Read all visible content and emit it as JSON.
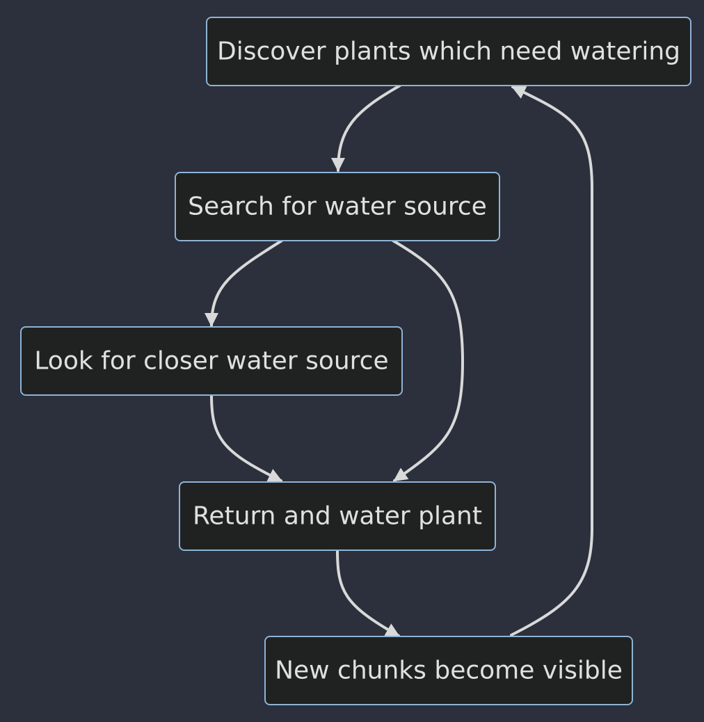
{
  "nodes": {
    "discover": "Discover plants which need watering",
    "search": "Search for water source",
    "look_closer": "Look for closer water source",
    "return_water": "Return and water plant",
    "new_chunks": "New chunks become visible"
  },
  "edges": [
    {
      "from": "discover",
      "to": "search"
    },
    {
      "from": "search",
      "to": "look_closer"
    },
    {
      "from": "search",
      "to": "return_water"
    },
    {
      "from": "look_closer",
      "to": "return_water"
    },
    {
      "from": "return_water",
      "to": "new_chunks"
    },
    {
      "from": "new_chunks",
      "to": "discover"
    }
  ],
  "colors": {
    "background": "#2b303c",
    "node_fill": "#202222",
    "node_border": "#8fb3d6",
    "node_text": "#e0e0e0",
    "edge": "#d9d9d9"
  }
}
